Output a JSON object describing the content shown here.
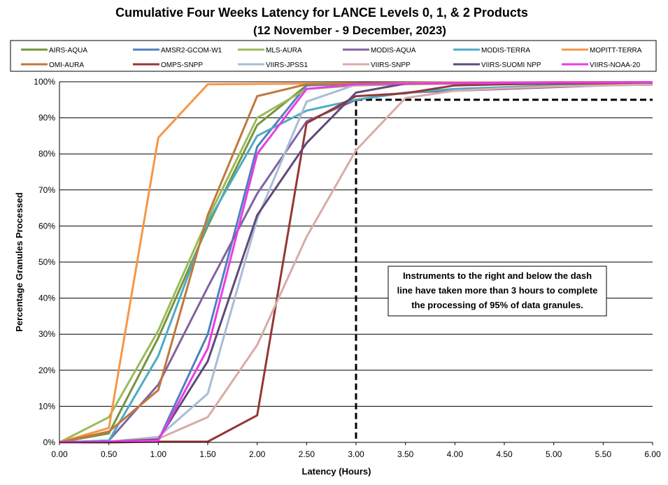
{
  "chart_data": {
    "type": "line",
    "title": "Cumulative Four Weeks Latency  for LANCE Levels 0, 1, & 2 Products",
    "subtitle": "(12  November   -  9  December,  2023)",
    "xlabel": "Latency (Hours)",
    "ylabel": "Percentage Granules Processed",
    "xlim": [
      0,
      6
    ],
    "ylim": [
      0,
      100
    ],
    "x_ticks": [
      "0.00",
      "0.50",
      "1.00",
      "1.50",
      "2.00",
      "2.50",
      "3.00",
      "3.50",
      "4.00",
      "4.50",
      "5.00",
      "5.50",
      "6.00"
    ],
    "y_ticks": [
      "0%",
      "10%",
      "20%",
      "30%",
      "40%",
      "50%",
      "60%",
      "70%",
      "80%",
      "90%",
      "100%"
    ],
    "grid": "horizontal",
    "legend_position": "top",
    "x": [
      0,
      0.5,
      1,
      1.5,
      2,
      2.5,
      3,
      3.5,
      4,
      4.5,
      5,
      5.5,
      6
    ],
    "series": [
      {
        "name": "AIRS-AQUA",
        "color": "#77933C",
        "values": [
          0,
          2.5,
          29,
          60,
          88,
          99,
          99.5,
          99.6,
          99.7,
          99.8,
          99.8,
          99.9,
          99.9
        ]
      },
      {
        "name": "AMSR2-GCOM-W1",
        "color": "#4F81BD",
        "values": [
          0,
          0.2,
          0.5,
          30,
          82,
          99,
          99.5,
          99.6,
          99.7,
          99.8,
          99.8,
          99.9,
          99.9
        ]
      },
      {
        "name": "MLS-AURA",
        "color": "#9BBB59",
        "values": [
          0,
          7,
          31,
          62,
          90,
          98,
          99,
          99.3,
          99.5,
          99.6,
          99.7,
          99.8,
          99.8
        ]
      },
      {
        "name": "MODIS-AQUA",
        "color": "#8064A2",
        "values": [
          0,
          0.5,
          16,
          43,
          69,
          89,
          95,
          97,
          97.5,
          98,
          98.5,
          99,
          99.2
        ]
      },
      {
        "name": "MODIS-TERRA",
        "color": "#4BACC6",
        "values": [
          0,
          0.5,
          24,
          61,
          85,
          92,
          95,
          97,
          98,
          98.5,
          99,
          99.2,
          99.4
        ]
      },
      {
        "name": "MOPITT-TERRA",
        "color": "#F79646",
        "values": [
          0,
          4,
          84.5,
          99.3,
          99.4,
          99.5,
          99.6,
          99.7,
          99.8,
          99.8,
          99.9,
          99.9,
          99.9
        ]
      },
      {
        "name": "OMI-AURA",
        "color": "#C0783C",
        "values": [
          0,
          3,
          14.5,
          63,
          96,
          99.3,
          99.5,
          99.6,
          99.7,
          99.8,
          99.8,
          99.9,
          99.9
        ]
      },
      {
        "name": "OMPS-SNPP",
        "color": "#953735",
        "values": [
          0,
          0,
          0.2,
          0.2,
          7.5,
          88.5,
          96,
          96.8,
          99,
          99.3,
          99.5,
          99.6,
          99.8
        ]
      },
      {
        "name": "VIIRS-JPSS1",
        "color": "#A9BCD6",
        "values": [
          0,
          0.2,
          1.5,
          13.5,
          62,
          94.5,
          99.2,
          99.5,
          99.6,
          99.7,
          99.8,
          99.8,
          99.9
        ]
      },
      {
        "name": "VIIRS-SNPP",
        "color": "#D9ABA8",
        "values": [
          0,
          0.2,
          1,
          7,
          27,
          57,
          81,
          95.5,
          97.5,
          98.2,
          98.7,
          99,
          99.2
        ]
      },
      {
        "name": "VIIRS-SUOMI NPP",
        "color": "#60497A",
        "values": [
          0,
          0.2,
          0.8,
          22.5,
          63,
          83,
          97,
          99.5,
          99.6,
          99.7,
          99.8,
          99.8,
          99.9
        ]
      },
      {
        "name": "VIIRS-NOAA-20",
        "color": "#E83CE8",
        "values": [
          0,
          0.2,
          0.5,
          26,
          80,
          98,
          99.3,
          99.5,
          99.6,
          99.7,
          99.8,
          99.8,
          99.9
        ]
      }
    ],
    "reference_lines": {
      "x": 3,
      "y": 95,
      "style": "dashed",
      "color": "#000000"
    },
    "annotation": [
      "Instruments to the right and below the dash",
      "line have taken more than 3 hours to complete",
      "the processing of 95% of data granules."
    ]
  }
}
